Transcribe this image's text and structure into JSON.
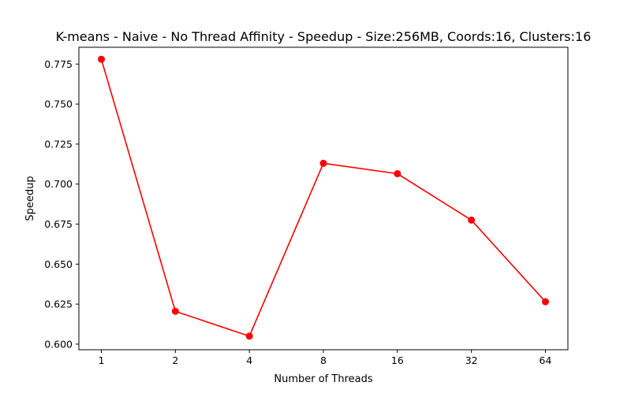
{
  "chart_data": {
    "type": "line",
    "title": "K-means - Naive - No Thread Affinity - Speedup - Size:256MB, Coords:16, Clusters:16",
    "xlabel": "Number of Threads",
    "ylabel": "Speedup",
    "categories": [
      "1",
      "2",
      "4",
      "8",
      "16",
      "32",
      "64"
    ],
    "series": [
      {
        "values": [
          0.778,
          0.6205,
          0.605,
          0.713,
          0.7065,
          0.6775,
          0.6265
        ],
        "color": "#ff0000",
        "marker": "circle"
      }
    ],
    "ylim": [
      0.5965,
      0.7855
    ],
    "yticks": [
      0.6,
      0.625,
      0.65,
      0.675,
      0.7,
      0.725,
      0.75,
      0.775
    ],
    "ytick_labels": [
      "0.600",
      "0.625",
      "0.650",
      "0.675",
      "0.700",
      "0.725",
      "0.750",
      "0.775"
    ],
    "grid": false,
    "legend": "none"
  }
}
